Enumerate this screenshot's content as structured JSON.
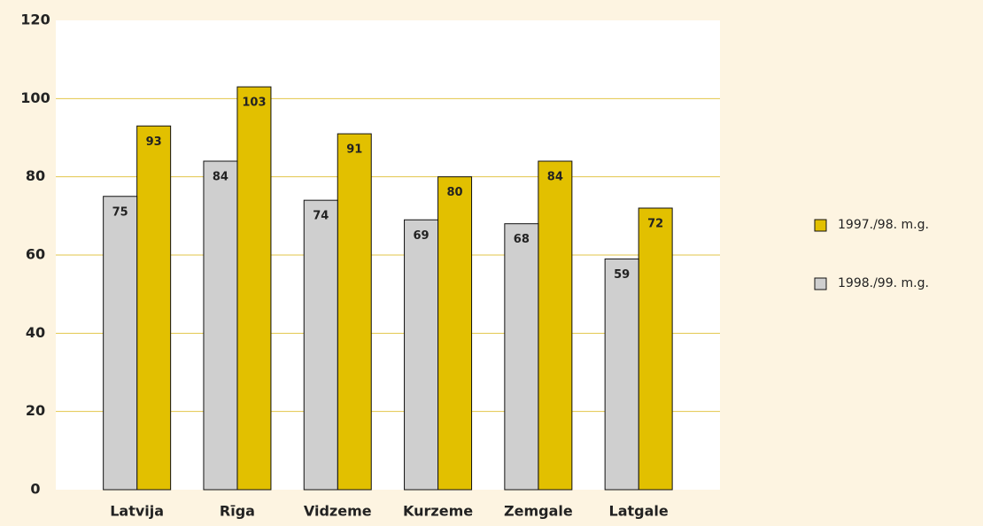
{
  "chart_data": {
    "type": "bar",
    "categories": [
      "Latvija",
      "Rīga",
      "Vidzeme",
      "Kurzeme",
      "Zemgale",
      "Latgale"
    ],
    "series": [
      {
        "name": "1997./98. m.g.",
        "color": "#e2c000",
        "values": [
          93,
          103,
          91,
          80,
          84,
          72
        ]
      },
      {
        "name": "1998./99. m.g.",
        "color": "#cfcfcf",
        "values": [
          75,
          84,
          74,
          69,
          68,
          59
        ]
      }
    ],
    "ylim": [
      0,
      120
    ],
    "yticks": [
      0,
      20,
      40,
      60,
      80,
      100,
      120
    ],
    "grid": true,
    "legend": "right"
  }
}
